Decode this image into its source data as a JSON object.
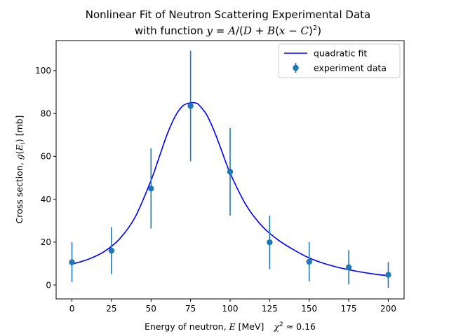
{
  "chart_data": {
    "type": "scatter",
    "title": {
      "line1": "Nonlinear Fit of Neutron Scattering Experimental Data",
      "line2_prefix": "with function  ",
      "formula_y": "y",
      "formula_eq": " = ",
      "formula_A": "A",
      "formula_slash": "/(",
      "formula_D": "D",
      "formula_plus": " + ",
      "formula_B": "B",
      "formula_open": "(",
      "formula_x": "x",
      "formula_minus": " − ",
      "formula_C": "C",
      "formula_close": ")",
      "formula_exp": "2",
      "formula_end": ")"
    },
    "xlabel": {
      "prefix": "Energy of neutron, ",
      "var": "E",
      "unit": " [MeV]",
      "chi": "χ",
      "chi_exp": "2",
      "chi_rest": " ≈ 0.16"
    },
    "ylabel": {
      "prefix": "Cross section, ",
      "var": "g",
      "open": "(",
      "sub": "E",
      "subsub": "i",
      "close": ")",
      "unit": " [mb]"
    },
    "xlim": [
      -10,
      210
    ],
    "ylim": [
      -6.5,
      114
    ],
    "x_ticks": [
      0,
      25,
      50,
      75,
      100,
      125,
      150,
      175,
      200
    ],
    "y_ticks": [
      0,
      20,
      40,
      60,
      80,
      100
    ],
    "legend_position": "top-right",
    "colors": {
      "fit": "#0000ff",
      "data": "#1f77b4"
    },
    "series": [
      {
        "name": "quadratic fit",
        "kind": "line",
        "x": [
          0,
          10,
          20,
          30,
          40,
          50,
          55,
          60,
          65,
          70,
          75,
          78,
          80,
          85,
          90,
          95,
          100,
          110,
          120,
          130,
          140,
          150,
          160,
          170,
          180,
          190,
          200
        ],
        "y": [
          9.7,
          11.9,
          15.4,
          21.4,
          31.7,
          48.8,
          59.3,
          69.9,
          78.3,
          83.5,
          85.0,
          84.9,
          84.2,
          79.6,
          71.7,
          61.9,
          52.2,
          37.4,
          27.6,
          21.2,
          16.5,
          12.6,
          9.9,
          7.9,
          6.4,
          5.2,
          4.3
        ]
      },
      {
        "name": "experiment data",
        "kind": "errorbar",
        "x": [
          0,
          25,
          50,
          75,
          100,
          125,
          150,
          175,
          200
        ],
        "y": [
          10.6,
          16.0,
          45.0,
          83.5,
          52.8,
          19.9,
          10.8,
          8.25,
          4.7
        ],
        "err": [
          9.3,
          11.0,
          18.7,
          25.8,
          20.4,
          12.5,
          9.2,
          8.0,
          6.0
        ]
      }
    ]
  }
}
